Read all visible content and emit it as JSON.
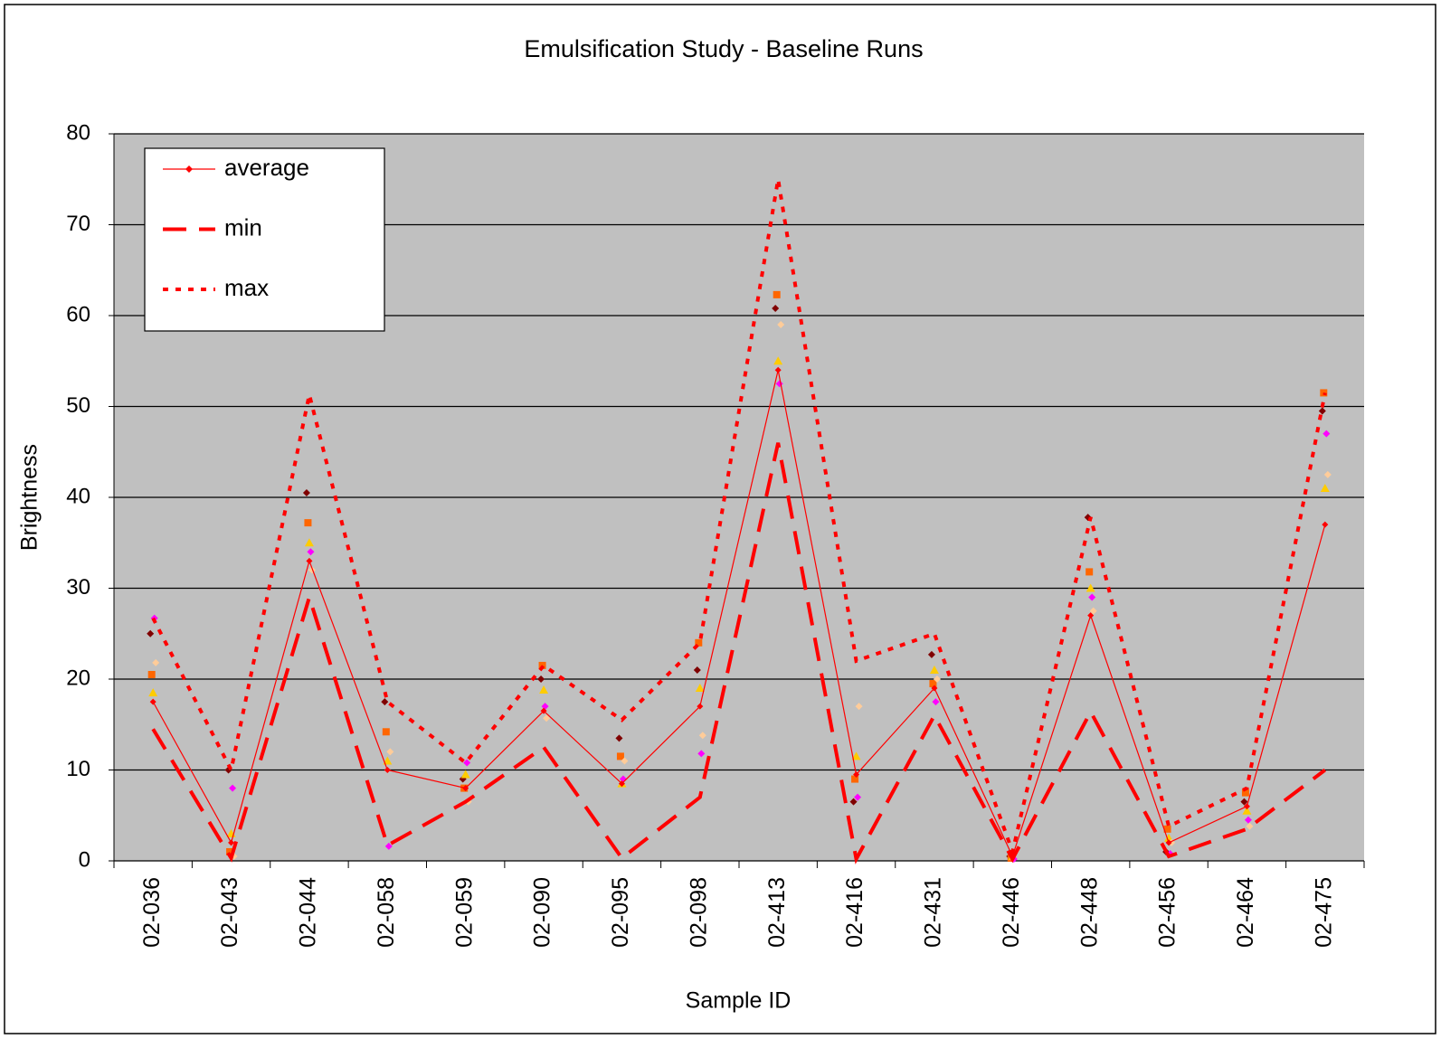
{
  "chart_data": {
    "type": "line",
    "title": "Emulsification Study - Baseline Runs",
    "x_label": "Sample ID",
    "y_label": "Brightness",
    "categories": [
      "02-036",
      "02-043",
      "02-044",
      "02-058",
      "02-059",
      "02-090",
      "02-095",
      "02-098",
      "02-413",
      "02-416",
      "02-431",
      "02-446",
      "02-448",
      "02-456",
      "02-464",
      "02-475"
    ],
    "ylim": [
      0,
      80
    ],
    "yticks": [
      0,
      10,
      20,
      30,
      40,
      50,
      60,
      70,
      80
    ],
    "grid": true,
    "legend": "top-left",
    "series": [
      {
        "name": "average",
        "color": "#ff0000",
        "dash": "solid",
        "marker": "diamond",
        "values": [
          17.5,
          2,
          33,
          10,
          8,
          16.5,
          8.5,
          17,
          54,
          9.5,
          19,
          0.5,
          27,
          2,
          6,
          37
        ]
      },
      {
        "name": "min",
        "color": "#ff0000",
        "dash": "long",
        "values": [
          14.5,
          0.3,
          29,
          1.7,
          6.5,
          12.5,
          0.3,
          7,
          46,
          0.2,
          16,
          0.2,
          16.4,
          0.5,
          3.5,
          10
        ]
      },
      {
        "name": "max",
        "color": "#ff0000",
        "dash": "dotted",
        "values": [
          26.7,
          10,
          51.3,
          17.5,
          10.8,
          21.5,
          15.5,
          24,
          75,
          22,
          25,
          1,
          37.8,
          3.8,
          8,
          51.5
        ]
      }
    ],
    "runs": [
      {
        "color": "#800000",
        "marker": "diamond",
        "values": [
          25,
          10,
          40.5,
          17.5,
          9,
          20,
          13.5,
          21,
          60.8,
          6.5,
          22.7,
          0.5,
          37.8,
          1,
          6.5,
          49.5
        ]
      },
      {
        "color": "#ff6600",
        "marker": "square",
        "values": [
          20.5,
          1,
          37.2,
          14.2,
          8,
          21.5,
          11.5,
          24,
          62.3,
          9,
          19.5,
          0.3,
          31.8,
          3.5,
          7.5,
          51.5
        ]
      },
      {
        "color": "#ffcc00",
        "marker": "triangle",
        "values": [
          18.5,
          3,
          35,
          11,
          9.5,
          18.8,
          8.5,
          19,
          55,
          11.5,
          21,
          0.5,
          30,
          2.5,
          5.5,
          41
        ]
      },
      {
        "color": "#ff00ff",
        "marker": "diamond",
        "values": [
          26.7,
          8,
          34,
          1.6,
          10.8,
          17,
          9,
          11.8,
          52.5,
          7,
          17.5,
          0.2,
          29,
          0.8,
          4.5,
          47
        ]
      },
      {
        "color": "#ffcc99",
        "marker": "diamond",
        "values": [
          21.8,
          0.5,
          32,
          12,
          6.5,
          15.7,
          11,
          13.8,
          59,
          17,
          20,
          1,
          27.5,
          2,
          3.8,
          42.5
        ]
      }
    ]
  }
}
